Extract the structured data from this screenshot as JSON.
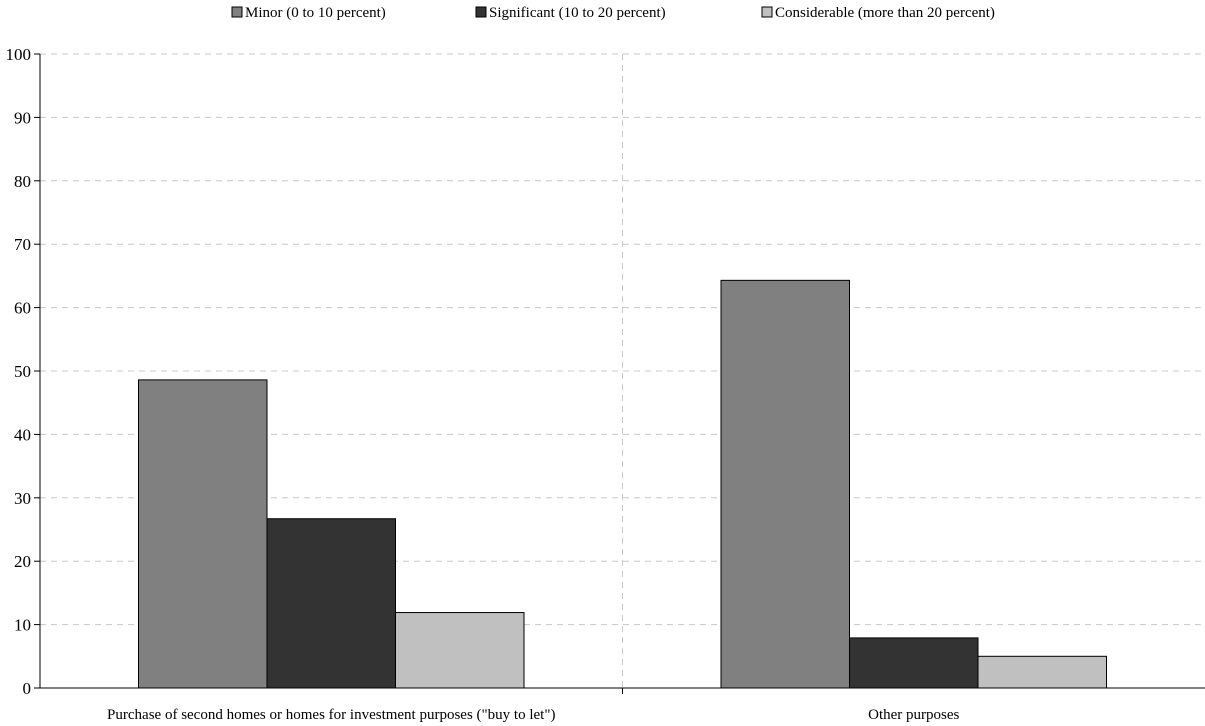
{
  "chart_data": {
    "type": "bar",
    "categories": [
      "Purchase of second homes or homes for investment purposes (\"buy to let\")",
      "Other purposes"
    ],
    "series": [
      {
        "name": "Minor (0 to 10 percent)",
        "color": "#808080",
        "values": [
          48.6,
          64.3
        ]
      },
      {
        "name": "Significant (10 to 20 percent)",
        "color": "#333333",
        "values": [
          26.7,
          7.9
        ]
      },
      {
        "name": "Considerable (more than 20 percent)",
        "color": "#c0c0c0",
        "values": [
          11.9,
          5.0
        ]
      }
    ],
    "title": "",
    "xlabel": "",
    "ylabel": "",
    "ylim": [
      0,
      100
    ],
    "yticks": [
      "0",
      "10",
      "20",
      "30",
      "40",
      "50",
      "60",
      "70",
      "80",
      "90",
      "100"
    ],
    "grid": "horizontal and vertical dashed",
    "legend_position": "top-center"
  }
}
